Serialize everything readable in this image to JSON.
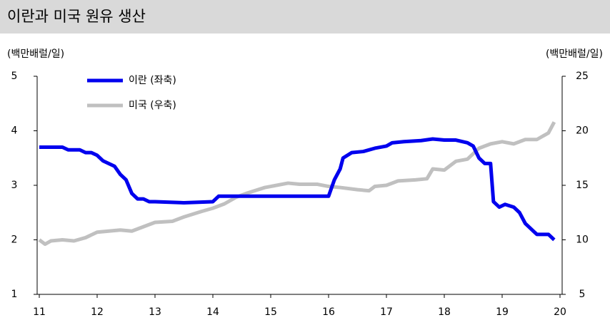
{
  "chart_data": {
    "type": "line",
    "title": "이란과 미국 원유 생산",
    "y_label": "(백만배럴/일)",
    "y2_label": "(백만배럴/일)",
    "xlim": [
      11,
      20
    ],
    "xticks": [
      11,
      12,
      13,
      14,
      15,
      16,
      17,
      18,
      19,
      20
    ],
    "ylim": [
      1,
      5
    ],
    "yticks": [
      1,
      2,
      3,
      4,
      5
    ],
    "y2lim": [
      5,
      25
    ],
    "y2ticks": [
      5,
      10,
      15,
      20,
      25
    ],
    "series": [
      {
        "name": "이란 (좌축)",
        "color": "#0000ee",
        "x": [
          11.0,
          11.4,
          11.5,
          11.7,
          11.8,
          11.9,
          12.0,
          12.1,
          12.3,
          12.4,
          12.5,
          12.6,
          12.7,
          12.8,
          12.9,
          13.0,
          13.5,
          14.0,
          14.1,
          14.5,
          15.0,
          15.5,
          15.9,
          16.0,
          16.1,
          16.2,
          16.25,
          16.4,
          16.6,
          16.8,
          17.0,
          17.1,
          17.3,
          17.6,
          17.8,
          18.0,
          18.2,
          18.4,
          18.5,
          18.6,
          18.7,
          18.8,
          18.85,
          18.95,
          19.05,
          19.2,
          19.3,
          19.4,
          19.55,
          19.6,
          19.8,
          19.9
        ],
        "values": [
          3.7,
          3.7,
          3.65,
          3.65,
          3.6,
          3.6,
          3.55,
          3.45,
          3.35,
          3.2,
          3.1,
          2.85,
          2.75,
          2.75,
          2.7,
          2.7,
          2.68,
          2.7,
          2.8,
          2.8,
          2.8,
          2.8,
          2.8,
          2.8,
          3.1,
          3.3,
          3.5,
          3.6,
          3.62,
          3.68,
          3.72,
          3.78,
          3.8,
          3.82,
          3.85,
          3.83,
          3.83,
          3.78,
          3.72,
          3.5,
          3.4,
          3.4,
          2.7,
          2.6,
          2.65,
          2.6,
          2.5,
          2.3,
          2.15,
          2.1,
          2.1,
          2.0
        ]
      },
      {
        "name": "미국 (우축)",
        "color": "#c0c0c0",
        "axis": "y2",
        "x": [
          11.0,
          11.1,
          11.2,
          11.4,
          11.6,
          11.8,
          12.0,
          12.2,
          12.4,
          12.6,
          12.8,
          13.0,
          13.3,
          13.5,
          13.8,
          14.0,
          14.2,
          14.4,
          14.6,
          14.9,
          15.0,
          15.3,
          15.5,
          15.8,
          16.0,
          16.2,
          16.5,
          16.7,
          16.8,
          17.0,
          17.2,
          17.5,
          17.7,
          17.8,
          18.0,
          18.2,
          18.4,
          18.6,
          18.8,
          19.0,
          19.2,
          19.4,
          19.6,
          19.8,
          19.9
        ],
        "values": [
          10.0,
          9.6,
          9.9,
          10.0,
          9.9,
          10.2,
          10.7,
          10.8,
          10.9,
          10.8,
          11.2,
          11.6,
          11.7,
          12.1,
          12.6,
          12.9,
          13.3,
          13.9,
          14.3,
          14.8,
          14.9,
          15.2,
          15.1,
          15.1,
          14.9,
          14.8,
          14.6,
          14.5,
          14.9,
          15.0,
          15.4,
          15.5,
          15.6,
          16.5,
          16.4,
          17.2,
          17.4,
          18.4,
          18.8,
          19.0,
          18.8,
          19.2,
          19.2,
          19.8,
          20.8
        ]
      }
    ]
  }
}
